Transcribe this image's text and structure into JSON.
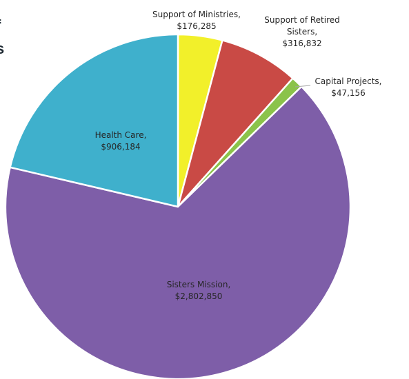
{
  "heading_fragments": [
    "f",
    "s"
  ],
  "chart_data": {
    "type": "pie",
    "title": "",
    "start_angle_deg": 0,
    "direction": "clockwise",
    "legend": "none",
    "slices": [
      {
        "label": "Support of Ministries",
        "value_text": "$176,285",
        "value": 176285,
        "color": "#f2f02a"
      },
      {
        "label": "Support of Retired Sisters",
        "value_text": "$316,832",
        "value": 316832,
        "color": "#c94a45"
      },
      {
        "label": "Capital Projects",
        "value_text": "$47,156",
        "value": 47156,
        "color": "#8bc34a"
      },
      {
        "label": "Sisters Mission",
        "value_text": "$2,802,850",
        "value": 2802850,
        "color": "#7e5ea8"
      },
      {
        "label": "Health Care",
        "value_text": "$906,184",
        "value": 906184,
        "color": "#3fb0cc"
      }
    ]
  }
}
